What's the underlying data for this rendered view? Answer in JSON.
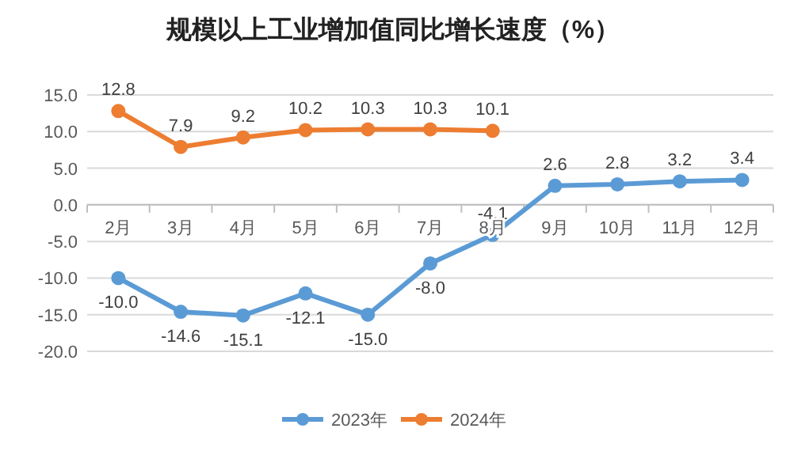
{
  "chart_data": {
    "type": "line",
    "title": "规模以上工业增加值同比增长速度（%）",
    "categories": [
      "2月",
      "3月",
      "4月",
      "5月",
      "6月",
      "7月",
      "8月",
      "9月",
      "10月",
      "11月",
      "12月"
    ],
    "series": [
      {
        "name": "2023年",
        "color": "#5b9bd5",
        "values": [
          -10.0,
          -14.6,
          -15.1,
          -12.1,
          -15.0,
          -8.0,
          -4.1,
          2.6,
          2.8,
          3.2,
          3.4
        ],
        "value_labels": [
          "-10.0",
          "-14.6",
          "-15.1",
          "-12.1",
          "-15.0",
          "-8.0",
          "-4.1",
          "2.6",
          "2.8",
          "3.2",
          "3.4"
        ]
      },
      {
        "name": "2024年",
        "color": "#ed7d31",
        "values": [
          12.8,
          7.9,
          9.2,
          10.2,
          10.3,
          10.3,
          10.1,
          null,
          null,
          null,
          null
        ],
        "value_labels": [
          "12.8",
          "7.9",
          "9.2",
          "10.2",
          "10.3",
          "10.3",
          "10.1",
          null,
          null,
          null,
          null
        ]
      }
    ],
    "ylim": [
      -20,
      15
    ],
    "yticks": [
      {
        "value": -20,
        "label": "-20.0"
      },
      {
        "value": -15,
        "label": "-15.0"
      },
      {
        "value": -10,
        "label": "-10.0"
      },
      {
        "value": -5,
        "label": "-5.0"
      },
      {
        "value": 0,
        "label": "0.0"
      },
      {
        "value": 5,
        "label": "5.0"
      },
      {
        "value": 10,
        "label": "10.0"
      },
      {
        "value": 15,
        "label": "15.0"
      }
    ],
    "grid": "y",
    "legend": "bottom",
    "marker": "circle",
    "line_style": "solid"
  }
}
